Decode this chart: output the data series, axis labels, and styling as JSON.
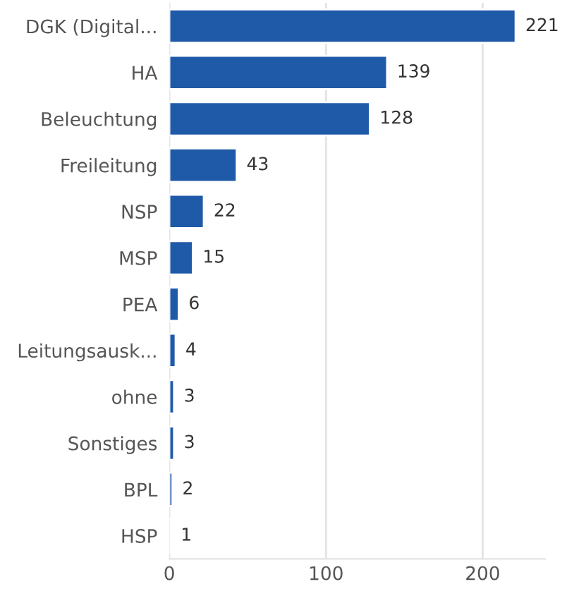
{
  "chart_data": {
    "type": "bar",
    "orientation": "horizontal",
    "categories": [
      "DGK (Digital...",
      "HA",
      "Beleuchtung",
      "Freileitung",
      "NSP",
      "MSP",
      "PEA",
      "Leitungsausk...",
      "ohne",
      "Sonstiges",
      "BPL",
      "HSP"
    ],
    "values": [
      221,
      139,
      128,
      43,
      22,
      15,
      6,
      4,
      3,
      3,
      2,
      1
    ],
    "color": "#1f5aa8",
    "xlim": [
      0,
      240
    ],
    "xticks": [
      0,
      100,
      200
    ],
    "grid": "x",
    "data_labels": true
  }
}
